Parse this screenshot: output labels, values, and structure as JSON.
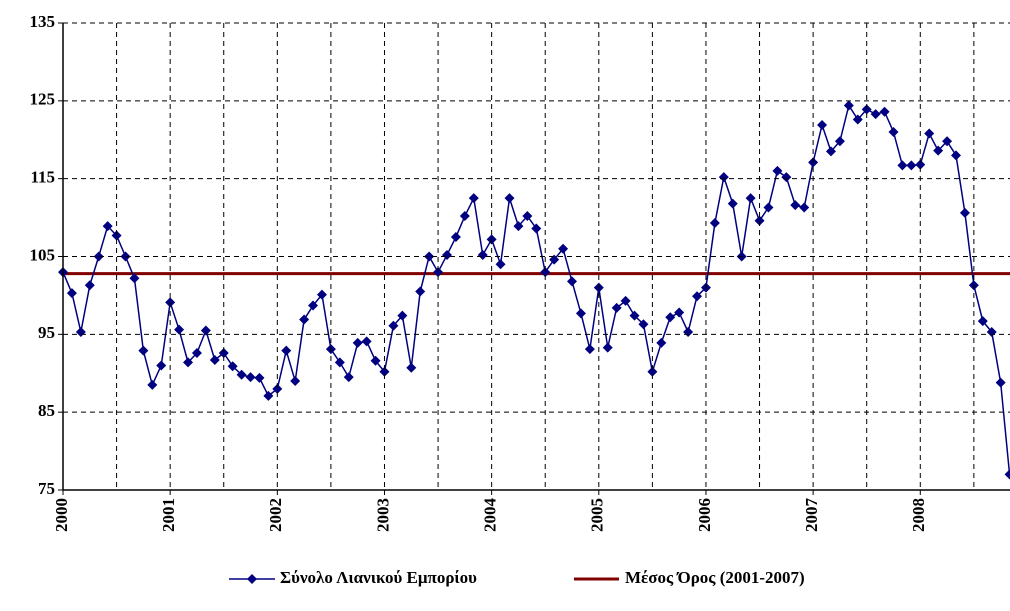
{
  "chart_data": {
    "type": "line",
    "categories": [
      "2000",
      null,
      null,
      null,
      null,
      null,
      null,
      null,
      null,
      null,
      null,
      null,
      "2001",
      null,
      null,
      null,
      null,
      null,
      null,
      null,
      null,
      null,
      null,
      null,
      "2002",
      null,
      null,
      null,
      null,
      null,
      null,
      null,
      null,
      null,
      null,
      null,
      "2003",
      null,
      null,
      null,
      null,
      null,
      null,
      null,
      null,
      null,
      null,
      null,
      "2004",
      null,
      null,
      null,
      null,
      null,
      null,
      null,
      null,
      null,
      null,
      null,
      "2005",
      null,
      null,
      null,
      null,
      null,
      null,
      null,
      null,
      null,
      null,
      null,
      "2006",
      null,
      null,
      null,
      null,
      null,
      null,
      null,
      null,
      null,
      null,
      null,
      "2007",
      null,
      null,
      null,
      null,
      null,
      null,
      null,
      null,
      null,
      null,
      null,
      "2008",
      null,
      null,
      null,
      null,
      null,
      null,
      null,
      null,
      null,
      null
    ],
    "series": [
      {
        "name": "Σύνολο Λιανικού Εμπορίου",
        "color": "#000080",
        "values": [
          103.0,
          100.3,
          95.3,
          101.3,
          105.0,
          108.9,
          107.7,
          105.0,
          102.2,
          92.9,
          88.5,
          91.0,
          99.1,
          95.6,
          91.4,
          92.6,
          95.5,
          91.7,
          92.6,
          90.9,
          89.8,
          89.5,
          89.4,
          87.1,
          88.0,
          92.9,
          89.0,
          96.9,
          98.7,
          100.1,
          93.1,
          91.4,
          89.5,
          93.9,
          94.1,
          91.6,
          90.2,
          96.1,
          97.4,
          90.7,
          100.5,
          105.0,
          103.0,
          105.2,
          107.5,
          110.2,
          112.5,
          105.2,
          107.2,
          104.0,
          112.5,
          108.9,
          110.2,
          108.6,
          103.0,
          104.6,
          106.0,
          101.8,
          97.7,
          93.1,
          101.0,
          93.3,
          98.4,
          99.3,
          97.4,
          96.3,
          90.2,
          93.9,
          97.2,
          97.8,
          95.3,
          99.9,
          101.0,
          109.3,
          115.2,
          111.8,
          105.0,
          112.5,
          109.6,
          111.3,
          116.0,
          115.2,
          111.6,
          111.3,
          117.1,
          121.9,
          118.5,
          119.8,
          124.4,
          122.6,
          123.9,
          123.3,
          123.6,
          121.0,
          116.7,
          116.7,
          116.8,
          120.8,
          118.6,
          119.8,
          118.0,
          110.6,
          101.3,
          96.7,
          95.3,
          88.8,
          77.0
        ]
      }
    ],
    "average": {
      "name": "Μέσος Όρος (2001-2007)",
      "color": "#800000",
      "value": 102.8
    },
    "ylim": [
      75,
      135
    ],
    "yticks": [
      75,
      85,
      95,
      105,
      115,
      125,
      135
    ],
    "grid": true
  }
}
